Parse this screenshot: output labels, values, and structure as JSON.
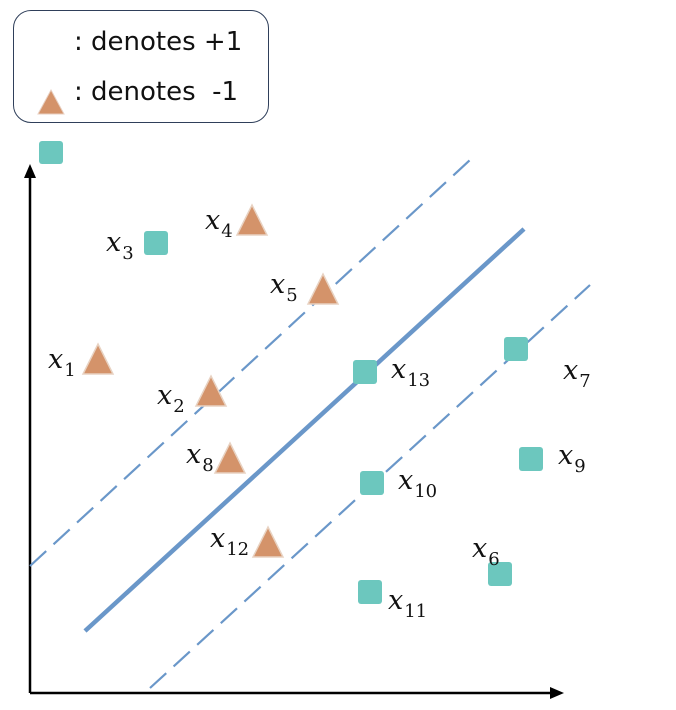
{
  "legend": {
    "positive": {
      "symbol": "triangle",
      "color": "#D4936A",
      "label": ": denotes +1"
    },
    "negative": {
      "symbol": "square",
      "color": "#6CC7BE",
      "label": ": denotes  -1"
    }
  },
  "colors": {
    "axis": "#000000",
    "boundary": "#6A97C9",
    "margin": "#6A97C9",
    "triangle": "#D4936A",
    "square": "#6CC7BE"
  },
  "points": [
    {
      "id": "x1",
      "var": "x",
      "sub": "1",
      "class": "+1",
      "symbol": "triangle"
    },
    {
      "id": "x2",
      "var": "x",
      "sub": "2",
      "class": "+1",
      "symbol": "triangle"
    },
    {
      "id": "x3",
      "var": "x",
      "sub": "3",
      "class": "-1",
      "symbol": "square"
    },
    {
      "id": "x4",
      "var": "x",
      "sub": "4",
      "class": "+1",
      "symbol": "triangle"
    },
    {
      "id": "x5",
      "var": "x",
      "sub": "5",
      "class": "+1",
      "symbol": "triangle"
    },
    {
      "id": "x6",
      "var": "x",
      "sub": "6",
      "class": "-1",
      "symbol": "square"
    },
    {
      "id": "x7",
      "var": "x",
      "sub": "7",
      "class": "-1",
      "symbol": "square"
    },
    {
      "id": "x8",
      "var": "x",
      "sub": "8",
      "class": "+1",
      "symbol": "triangle"
    },
    {
      "id": "x9",
      "var": "x",
      "sub": "9",
      "class": "-1",
      "symbol": "square"
    },
    {
      "id": "x10",
      "var": "x",
      "sub": "10",
      "class": "-1",
      "symbol": "square"
    },
    {
      "id": "x11",
      "var": "x",
      "sub": "11",
      "class": "-1",
      "symbol": "square"
    },
    {
      "id": "x12",
      "var": "x",
      "sub": "12",
      "class": "+1",
      "symbol": "triangle"
    },
    {
      "id": "x13",
      "var": "x",
      "sub": "13",
      "class": "-1",
      "symbol": "square"
    }
  ]
}
